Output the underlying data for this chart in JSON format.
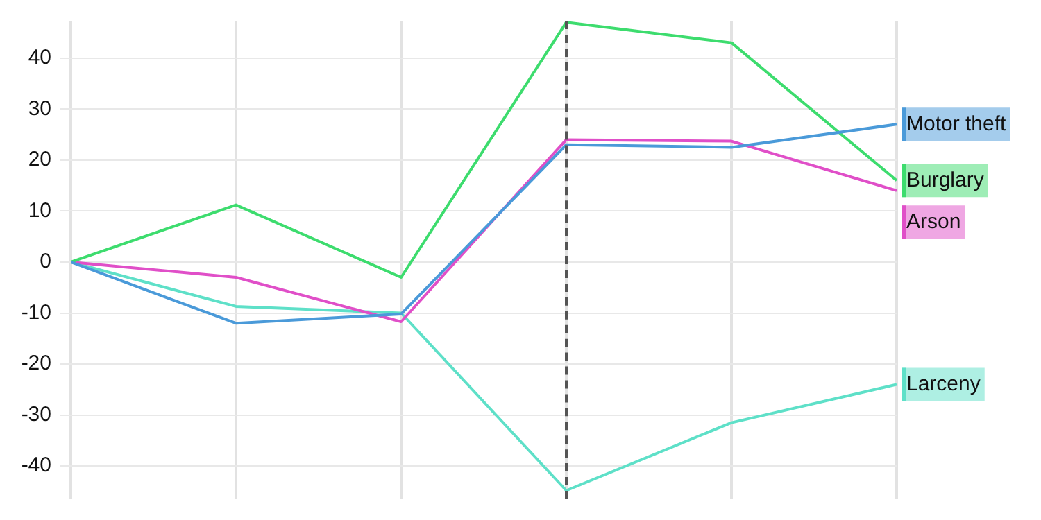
{
  "chart_data": {
    "type": "line",
    "categories": [
      null,
      null,
      null,
      null,
      null,
      null
    ],
    "ylim": [
      -46.5,
      47.3
    ],
    "yticks": [
      -40,
      -30,
      -20,
      -10,
      0,
      10,
      20,
      30,
      40
    ],
    "tick_labels": "y",
    "grid": true,
    "legend": "right",
    "marker": "none",
    "line_style": "solid",
    "series": [
      {
        "name": "Motor theft",
        "color": "#4a9ad9",
        "values": [
          0,
          -12,
          -10.2,
          23,
          22.5,
          27
        ]
      },
      {
        "name": "Burglary",
        "color": "#3ddc6e",
        "values": [
          0,
          11.2,
          -3,
          47,
          43,
          16
        ]
      },
      {
        "name": "Arson",
        "color": "#e04fc8",
        "values": [
          0,
          -3,
          -11.7,
          24,
          23.7,
          14
        ]
      },
      {
        "name": "Larceny",
        "color": "#5ee0c8",
        "values": [
          0,
          -8.7,
          -10,
          -44.8,
          -31.5,
          -24
        ]
      }
    ]
  }
}
